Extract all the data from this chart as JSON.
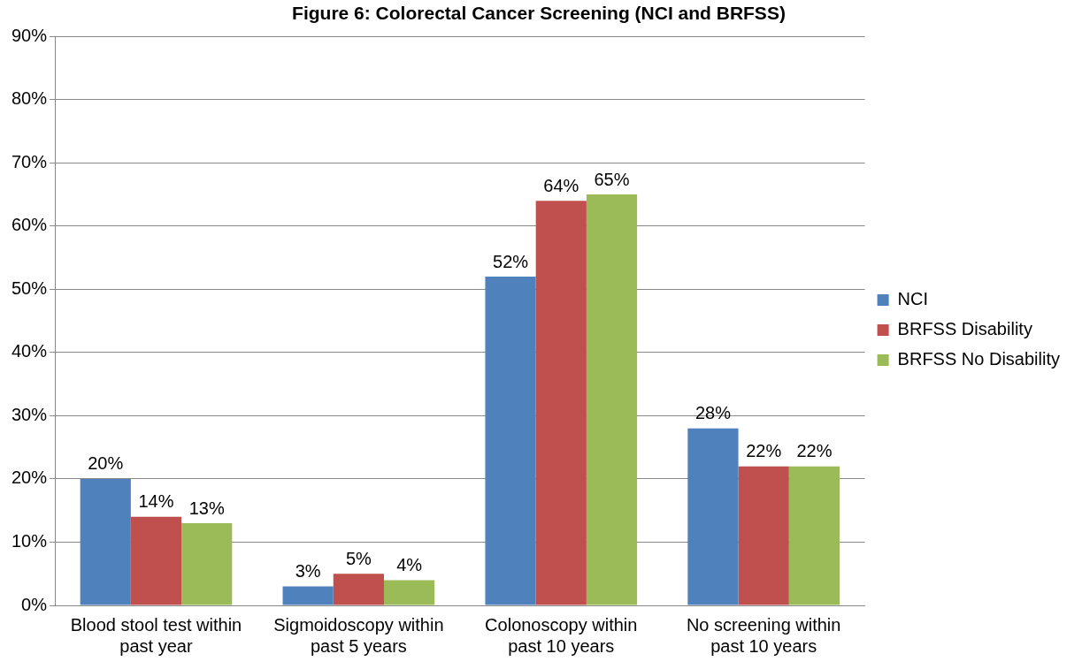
{
  "chart_data": {
    "type": "bar",
    "title": "Figure 6: Colorectal Cancer Screening (NCI and BRFSS)",
    "categories": [
      "Blood stool test within past year",
      "Sigmoidoscopy within past 5 years",
      "Colonoscopy within past 10 years",
      "No screening within past 10 years"
    ],
    "series": [
      {
        "name": "NCI",
        "color": "#4f81bd",
        "values": [
          20,
          3,
          52,
          28
        ],
        "value_labels": [
          "20%",
          "3%",
          "52%",
          "28%"
        ]
      },
      {
        "name": "BRFSS Disability",
        "color": "#c0504d",
        "values": [
          14,
          5,
          64,
          22
        ],
        "value_labels": [
          "14%",
          "5%",
          "64%",
          "22%"
        ]
      },
      {
        "name": "BRFSS No Disability",
        "color": "#9bbb59",
        "values": [
          13,
          4,
          65,
          22
        ],
        "value_labels": [
          "13%",
          "4%",
          "65%",
          "22%"
        ]
      }
    ],
    "ylim": [
      0,
      90
    ],
    "yticks": [
      {
        "value": 0,
        "label": "0%"
      },
      {
        "value": 10,
        "label": "10%"
      },
      {
        "value": 20,
        "label": "20%"
      },
      {
        "value": 30,
        "label": "30%"
      },
      {
        "value": 40,
        "label": "40%"
      },
      {
        "value": 50,
        "label": "50%"
      },
      {
        "value": 60,
        "label": "60%"
      },
      {
        "value": 70,
        "label": "70%"
      },
      {
        "value": 80,
        "label": "80%"
      },
      {
        "value": 90,
        "label": "90%"
      }
    ],
    "grid": "y",
    "legend": "right"
  }
}
